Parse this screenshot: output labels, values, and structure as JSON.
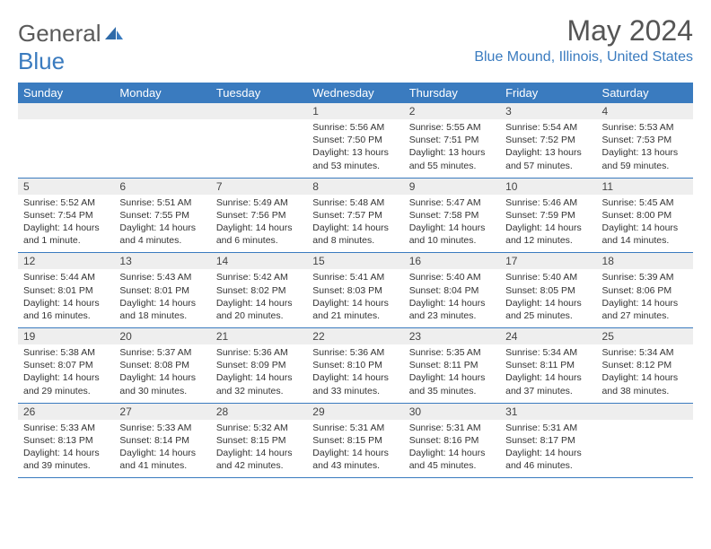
{
  "brand": {
    "word1": "General",
    "word2": "Blue"
  },
  "title": "May 2024",
  "location": "Blue Mound, Illinois, United States",
  "colors": {
    "header_bg": "#3a7bbf",
    "header_text": "#ffffff",
    "daynum_bg": "#eeeeee",
    "border": "#3a7bbf",
    "brand_gray": "#5a5a5a",
    "brand_blue": "#3a7bbf",
    "body_text": "#333333",
    "title_gray": "#555555"
  },
  "fonts": {
    "title_size": 32,
    "location_size": 16,
    "header_size": 13,
    "daynum_size": 12,
    "detail_size": 10.5
  },
  "day_headers": [
    "Sunday",
    "Monday",
    "Tuesday",
    "Wednesday",
    "Thursday",
    "Friday",
    "Saturday"
  ],
  "weeks": [
    [
      null,
      null,
      null,
      {
        "n": "1",
        "sr": "5:56 AM",
        "ss": "7:50 PM",
        "dl": "13 hours and 53 minutes."
      },
      {
        "n": "2",
        "sr": "5:55 AM",
        "ss": "7:51 PM",
        "dl": "13 hours and 55 minutes."
      },
      {
        "n": "3",
        "sr": "5:54 AM",
        "ss": "7:52 PM",
        "dl": "13 hours and 57 minutes."
      },
      {
        "n": "4",
        "sr": "5:53 AM",
        "ss": "7:53 PM",
        "dl": "13 hours and 59 minutes."
      }
    ],
    [
      {
        "n": "5",
        "sr": "5:52 AM",
        "ss": "7:54 PM",
        "dl": "14 hours and 1 minute."
      },
      {
        "n": "6",
        "sr": "5:51 AM",
        "ss": "7:55 PM",
        "dl": "14 hours and 4 minutes."
      },
      {
        "n": "7",
        "sr": "5:49 AM",
        "ss": "7:56 PM",
        "dl": "14 hours and 6 minutes."
      },
      {
        "n": "8",
        "sr": "5:48 AM",
        "ss": "7:57 PM",
        "dl": "14 hours and 8 minutes."
      },
      {
        "n": "9",
        "sr": "5:47 AM",
        "ss": "7:58 PM",
        "dl": "14 hours and 10 minutes."
      },
      {
        "n": "10",
        "sr": "5:46 AM",
        "ss": "7:59 PM",
        "dl": "14 hours and 12 minutes."
      },
      {
        "n": "11",
        "sr": "5:45 AM",
        "ss": "8:00 PM",
        "dl": "14 hours and 14 minutes."
      }
    ],
    [
      {
        "n": "12",
        "sr": "5:44 AM",
        "ss": "8:01 PM",
        "dl": "14 hours and 16 minutes."
      },
      {
        "n": "13",
        "sr": "5:43 AM",
        "ss": "8:01 PM",
        "dl": "14 hours and 18 minutes."
      },
      {
        "n": "14",
        "sr": "5:42 AM",
        "ss": "8:02 PM",
        "dl": "14 hours and 20 minutes."
      },
      {
        "n": "15",
        "sr": "5:41 AM",
        "ss": "8:03 PM",
        "dl": "14 hours and 21 minutes."
      },
      {
        "n": "16",
        "sr": "5:40 AM",
        "ss": "8:04 PM",
        "dl": "14 hours and 23 minutes."
      },
      {
        "n": "17",
        "sr": "5:40 AM",
        "ss": "8:05 PM",
        "dl": "14 hours and 25 minutes."
      },
      {
        "n": "18",
        "sr": "5:39 AM",
        "ss": "8:06 PM",
        "dl": "14 hours and 27 minutes."
      }
    ],
    [
      {
        "n": "19",
        "sr": "5:38 AM",
        "ss": "8:07 PM",
        "dl": "14 hours and 29 minutes."
      },
      {
        "n": "20",
        "sr": "5:37 AM",
        "ss": "8:08 PM",
        "dl": "14 hours and 30 minutes."
      },
      {
        "n": "21",
        "sr": "5:36 AM",
        "ss": "8:09 PM",
        "dl": "14 hours and 32 minutes."
      },
      {
        "n": "22",
        "sr": "5:36 AM",
        "ss": "8:10 PM",
        "dl": "14 hours and 33 minutes."
      },
      {
        "n": "23",
        "sr": "5:35 AM",
        "ss": "8:11 PM",
        "dl": "14 hours and 35 minutes."
      },
      {
        "n": "24",
        "sr": "5:34 AM",
        "ss": "8:11 PM",
        "dl": "14 hours and 37 minutes."
      },
      {
        "n": "25",
        "sr": "5:34 AM",
        "ss": "8:12 PM",
        "dl": "14 hours and 38 minutes."
      }
    ],
    [
      {
        "n": "26",
        "sr": "5:33 AM",
        "ss": "8:13 PM",
        "dl": "14 hours and 39 minutes."
      },
      {
        "n": "27",
        "sr": "5:33 AM",
        "ss": "8:14 PM",
        "dl": "14 hours and 41 minutes."
      },
      {
        "n": "28",
        "sr": "5:32 AM",
        "ss": "8:15 PM",
        "dl": "14 hours and 42 minutes."
      },
      {
        "n": "29",
        "sr": "5:31 AM",
        "ss": "8:15 PM",
        "dl": "14 hours and 43 minutes."
      },
      {
        "n": "30",
        "sr": "5:31 AM",
        "ss": "8:16 PM",
        "dl": "14 hours and 45 minutes."
      },
      {
        "n": "31",
        "sr": "5:31 AM",
        "ss": "8:17 PM",
        "dl": "14 hours and 46 minutes."
      },
      null
    ]
  ],
  "labels": {
    "sunrise": "Sunrise:",
    "sunset": "Sunset:",
    "daylight": "Daylight:"
  }
}
